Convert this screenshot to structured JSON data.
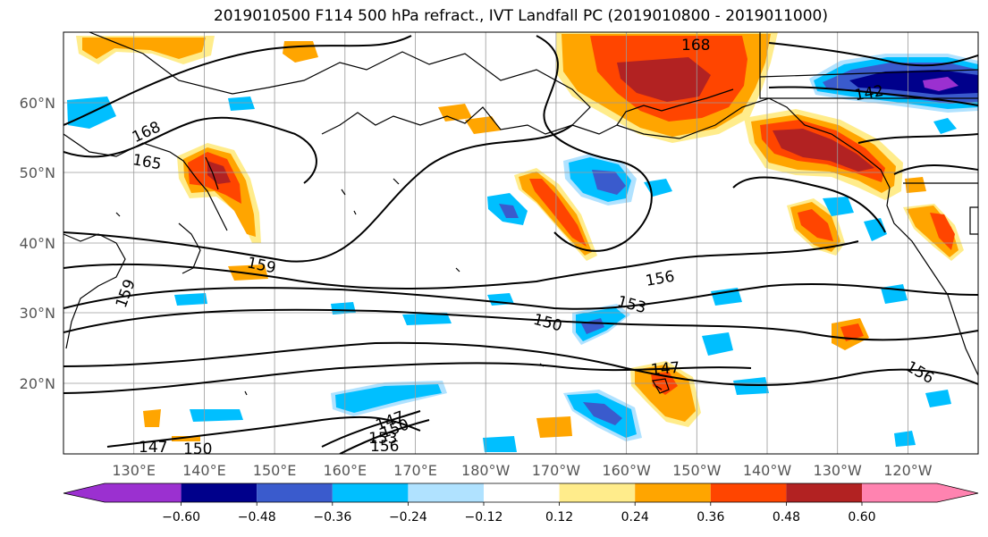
{
  "title": "2019010500 F114 500 hPa refract., IVT Landfall PC (2019010800 - 2019011000)",
  "map": {
    "lon_labels": [
      "130°E",
      "140°E",
      "150°E",
      "160°E",
      "170°E",
      "180°W",
      "170°W",
      "160°W",
      "150°W",
      "140°W",
      "130°W",
      "120°W"
    ],
    "lat_labels": [
      "60°N",
      "50°N",
      "40°N",
      "30°N",
      "20°N"
    ],
    "contour_labels": [
      "168",
      "165",
      "159",
      "156",
      "153",
      "150",
      "147",
      "147",
      "156",
      "142",
      "168",
      "147",
      "150",
      "153",
      "156",
      "159",
      "150"
    ]
  },
  "colorbar": {
    "ticks": [
      "−0.60",
      "−0.48",
      "−0.36",
      "−0.24",
      "−0.12",
      "0.12",
      "0.24",
      "0.36",
      "0.48",
      "0.60"
    ],
    "colors": [
      "#9b30d0",
      "#00008b",
      "#3a5bcd",
      "#00bfff",
      "#b0e2ff",
      "#ffffff",
      "#ffec8b",
      "#ffa500",
      "#ff4500",
      "#b22222",
      "#ff83b0"
    ]
  },
  "palette": {
    "purple": "#9b30d0",
    "navy": "#00008b",
    "royal": "#3a5bcd",
    "sky": "#00bfff",
    "pale_blue": "#b0e2ff",
    "pale_yellow": "#ffec8b",
    "orange": "#ffa500",
    "red_orange": "#ff4500",
    "firebrick": "#b22222",
    "pink": "#ff83b0"
  }
}
